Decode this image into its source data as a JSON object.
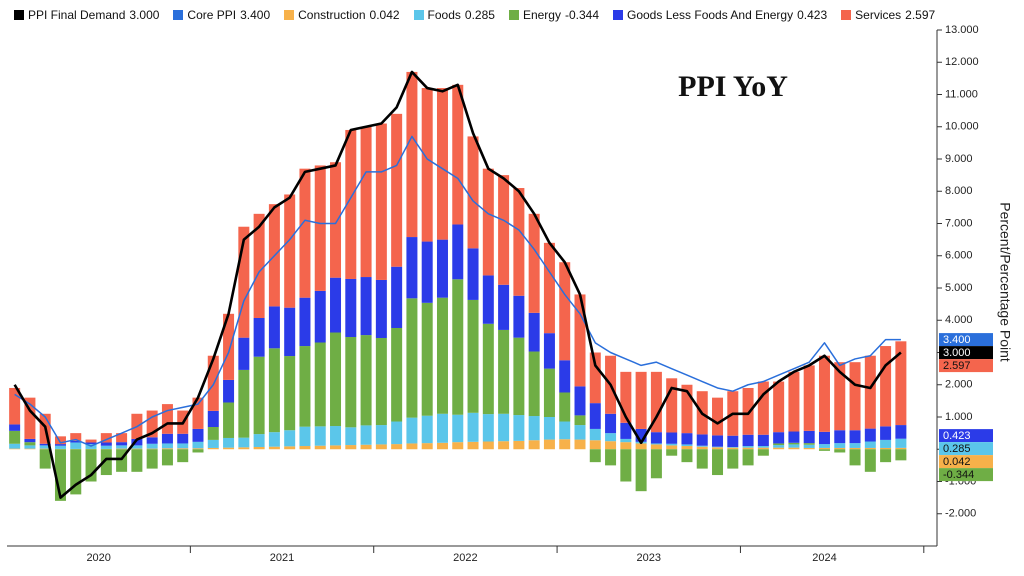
{
  "chart_data": {
    "type": "bar",
    "annotation": "PPI YoY",
    "y_label": "Percent/Percentage Point",
    "year_labels": [
      "2020",
      "2021",
      "2022",
      "2023",
      "2024"
    ],
    "categories": [
      null,
      null,
      null,
      null,
      null,
      null,
      null,
      null,
      null,
      null,
      null,
      null,
      null,
      null,
      null,
      null,
      null,
      null,
      null,
      null,
      null,
      null,
      null,
      null,
      null,
      null,
      null,
      null,
      null,
      null,
      null,
      null,
      null,
      null,
      null,
      null,
      null,
      null,
      null,
      null,
      null,
      null,
      null,
      null,
      null,
      null,
      null,
      null,
      null,
      null,
      null,
      null,
      null,
      null,
      null,
      null,
      null,
      null,
      null
    ],
    "ylim": [
      -3,
      13
    ],
    "yticks": [
      {
        "value": -2,
        "label": "-2.000"
      },
      {
        "value": -1,
        "label": "-1.000"
      },
      {
        "value": 0,
        "label": "0.000"
      },
      {
        "value": 1,
        "label": "1.000"
      },
      {
        "value": 2,
        "label": "2.000"
      },
      {
        "value": 3,
        "label": "3.000"
      },
      {
        "value": 4,
        "label": "4.000"
      },
      {
        "value": 5,
        "label": "5.000"
      },
      {
        "value": 6,
        "label": "6.000"
      },
      {
        "value": 7,
        "label": "7.000"
      },
      {
        "value": 8,
        "label": "8.000"
      },
      {
        "value": 9,
        "label": "9.000"
      },
      {
        "value": 10,
        "label": "10.000"
      },
      {
        "value": 11,
        "label": "11.000"
      },
      {
        "value": 12,
        "label": "12.000"
      },
      {
        "value": 13,
        "label": "13.000"
      }
    ],
    "series": [
      {
        "name": "PPI Final Demand",
        "type": "line",
        "color": "#000000",
        "values": [
          2.0,
          1.2,
          0.7,
          -1.5,
          -1.1,
          -0.8,
          -0.3,
          -0.3,
          0.3,
          0.5,
          0.8,
          0.8,
          1.6,
          2.8,
          4.2,
          6.5,
          6.9,
          7.5,
          7.8,
          8.6,
          8.7,
          8.8,
          9.9,
          10.0,
          10.1,
          10.6,
          11.7,
          11.2,
          11.1,
          11.3,
          9.8,
          8.7,
          8.4,
          8.0,
          7.3,
          6.4,
          5.8,
          4.8,
          2.6,
          2.0,
          1.0,
          0.2,
          1.0,
          1.9,
          1.8,
          1.1,
          0.8,
          1.1,
          1.1,
          1.7,
          2.1,
          2.4,
          2.6,
          2.9,
          2.4,
          2.0,
          1.9,
          2.6,
          3.0
        ],
        "value_labels": [
          null,
          null,
          null,
          null,
          null,
          null,
          null,
          null,
          null,
          null,
          null,
          null,
          null,
          null,
          null,
          null,
          null,
          null,
          null,
          null,
          null,
          null,
          null,
          null,
          null,
          null,
          null,
          null,
          null,
          null,
          null,
          null,
          null,
          null,
          null,
          null,
          null,
          null,
          null,
          null,
          null,
          null,
          null,
          null,
          null,
          null,
          null,
          null,
          null,
          null,
          null,
          null,
          null,
          null,
          null,
          null,
          null,
          null,
          "3.000"
        ]
      },
      {
        "name": "Core PPI",
        "type": "line",
        "color": "#2a6fdb",
        "values": [
          1.7,
          1.4,
          1.0,
          0.2,
          0.3,
          0.1,
          0.3,
          0.5,
          0.7,
          1.0,
          1.2,
          1.3,
          1.4,
          2.0,
          3.0,
          4.6,
          5.5,
          6.0,
          6.5,
          7.1,
          7.0,
          7.0,
          7.8,
          8.6,
          8.6,
          8.8,
          9.7,
          9.0,
          8.7,
          8.4,
          7.7,
          7.3,
          7.1,
          6.8,
          6.2,
          5.5,
          4.8,
          4.2,
          3.3,
          3.0,
          2.8,
          2.6,
          2.7,
          2.5,
          2.3,
          2.1,
          1.9,
          1.8,
          2.0,
          2.1,
          2.3,
          2.5,
          2.7,
          3.3,
          2.6,
          2.8,
          2.9,
          3.4,
          3.4
        ],
        "value_labels": [
          null,
          null,
          null,
          null,
          null,
          null,
          null,
          null,
          null,
          null,
          null,
          null,
          null,
          null,
          null,
          null,
          null,
          null,
          null,
          null,
          null,
          null,
          null,
          null,
          null,
          null,
          null,
          null,
          null,
          null,
          null,
          null,
          null,
          null,
          null,
          null,
          null,
          null,
          null,
          null,
          null,
          null,
          null,
          null,
          null,
          null,
          null,
          null,
          null,
          null,
          null,
          null,
          null,
          null,
          null,
          null,
          null,
          null,
          "3.400"
        ]
      },
      {
        "name": "Construction",
        "type": "bar",
        "color": "#f7b14a",
        "values": [
          0.02,
          0.02,
          0.02,
          0.01,
          0.01,
          0.01,
          0.01,
          0.02,
          0.02,
          0.02,
          0.03,
          0.03,
          0.03,
          0.04,
          0.05,
          0.06,
          0.07,
          0.08,
          0.09,
          0.1,
          0.11,
          0.12,
          0.13,
          0.14,
          0.15,
          0.16,
          0.18,
          0.19,
          0.2,
          0.22,
          0.23,
          0.24,
          0.25,
          0.26,
          0.28,
          0.3,
          0.31,
          0.3,
          0.28,
          0.25,
          0.22,
          0.18,
          0.15,
          0.12,
          0.1,
          0.08,
          0.06,
          0.05,
          0.05,
          0.05,
          0.05,
          0.05,
          0.04,
          0.04,
          0.04,
          0.04,
          0.04,
          0.04,
          0.042
        ],
        "value_labels": [
          null,
          null,
          null,
          null,
          null,
          null,
          null,
          null,
          null,
          null,
          null,
          null,
          null,
          null,
          null,
          null,
          null,
          null,
          null,
          null,
          null,
          null,
          null,
          null,
          null,
          null,
          null,
          null,
          null,
          null,
          null,
          null,
          null,
          null,
          null,
          null,
          null,
          null,
          null,
          null,
          null,
          null,
          null,
          null,
          null,
          null,
          null,
          null,
          null,
          null,
          null,
          null,
          null,
          null,
          null,
          null,
          null,
          null,
          "0.042"
        ]
      },
      {
        "name": "Foods",
        "type": "bar",
        "color": "#5bc6ea",
        "values": [
          0.15,
          0.1,
          0.1,
          0.1,
          0.2,
          0.15,
          0.1,
          0.1,
          0.1,
          0.15,
          0.15,
          0.15,
          0.2,
          0.25,
          0.3,
          0.3,
          0.4,
          0.45,
          0.5,
          0.6,
          0.6,
          0.6,
          0.55,
          0.6,
          0.6,
          0.7,
          0.8,
          0.85,
          0.9,
          0.85,
          0.9,
          0.85,
          0.85,
          0.8,
          0.75,
          0.7,
          0.55,
          0.45,
          0.35,
          0.25,
          0.1,
          0.05,
          0.03,
          0.05,
          0.05,
          0.03,
          0.02,
          0.02,
          0.05,
          0.05,
          0.08,
          0.1,
          0.1,
          0.12,
          0.15,
          0.15,
          0.2,
          0.25,
          0.285
        ],
        "value_labels": [
          null,
          null,
          null,
          null,
          null,
          null,
          null,
          null,
          null,
          null,
          null,
          null,
          null,
          null,
          null,
          null,
          null,
          null,
          null,
          null,
          null,
          null,
          null,
          null,
          null,
          null,
          null,
          null,
          null,
          null,
          null,
          null,
          null,
          null,
          null,
          null,
          null,
          null,
          null,
          null,
          null,
          null,
          null,
          null,
          null,
          null,
          null,
          null,
          null,
          null,
          null,
          null,
          null,
          null,
          null,
          null,
          null,
          null,
          "0.285"
        ]
      },
      {
        "name": "Energy",
        "type": "bar",
        "color": "#6fae45",
        "values": [
          0.4,
          0.1,
          -0.6,
          -1.6,
          -1.4,
          -1.0,
          -0.8,
          -0.7,
          -0.7,
          -0.6,
          -0.5,
          -0.4,
          -0.1,
          0.4,
          1.1,
          2.1,
          2.4,
          2.6,
          2.3,
          2.5,
          2.6,
          2.9,
          2.8,
          2.8,
          2.7,
          2.9,
          3.7,
          3.5,
          3.6,
          4.2,
          3.5,
          2.8,
          2.6,
          2.4,
          2.0,
          1.5,
          0.9,
          0.3,
          -0.4,
          -0.5,
          -1.0,
          -1.3,
          -0.9,
          -0.2,
          -0.4,
          -0.6,
          -0.8,
          -0.6,
          -0.5,
          -0.2,
          0.05,
          0.05,
          0.05,
          -0.05,
          -0.1,
          -0.5,
          -0.7,
          -0.4,
          -0.344
        ],
        "value_labels": [
          null,
          null,
          null,
          null,
          null,
          null,
          null,
          null,
          null,
          null,
          null,
          null,
          null,
          null,
          null,
          null,
          null,
          null,
          null,
          null,
          null,
          null,
          null,
          null,
          null,
          null,
          null,
          null,
          null,
          null,
          null,
          null,
          null,
          null,
          null,
          null,
          null,
          null,
          null,
          null,
          null,
          null,
          null,
          null,
          null,
          null,
          null,
          null,
          null,
          null,
          null,
          null,
          null,
          null,
          null,
          null,
          null,
          null,
          "-0.344"
        ]
      },
      {
        "name": "Goods Less Foods And Energy",
        "type": "bar",
        "color": "#2b3be8",
        "values": [
          0.2,
          0.1,
          0.05,
          0.05,
          0.05,
          0.05,
          0.1,
          0.1,
          0.2,
          0.2,
          0.3,
          0.3,
          0.4,
          0.5,
          0.7,
          1.0,
          1.2,
          1.3,
          1.5,
          1.5,
          1.6,
          1.7,
          1.8,
          1.8,
          1.8,
          1.9,
          1.9,
          1.9,
          1.8,
          1.7,
          1.6,
          1.5,
          1.4,
          1.3,
          1.2,
          1.1,
          1.0,
          0.9,
          0.8,
          0.6,
          0.5,
          0.4,
          0.35,
          0.35,
          0.35,
          0.35,
          0.35,
          0.35,
          0.35,
          0.35,
          0.35,
          0.35,
          0.38,
          0.38,
          0.4,
          0.4,
          0.4,
          0.42,
          0.423
        ],
        "value_labels": [
          null,
          null,
          null,
          null,
          null,
          null,
          null,
          null,
          null,
          null,
          null,
          null,
          null,
          null,
          null,
          null,
          null,
          null,
          null,
          null,
          null,
          null,
          null,
          null,
          null,
          null,
          null,
          null,
          null,
          null,
          null,
          null,
          null,
          null,
          null,
          null,
          null,
          null,
          null,
          null,
          null,
          null,
          null,
          null,
          null,
          null,
          null,
          null,
          null,
          null,
          null,
          null,
          null,
          null,
          null,
          null,
          null,
          null,
          "0.423"
        ]
      },
      {
        "name": "Services",
        "type": "bar",
        "color": "#f4654d",
        "values": [
          1.13,
          1.28,
          0.93,
          0.24,
          0.24,
          0.09,
          0.29,
          0.28,
          0.78,
          0.83,
          0.92,
          0.72,
          0.97,
          1.71,
          2.05,
          3.44,
          3.23,
          3.17,
          3.51,
          4.0,
          3.89,
          3.58,
          4.62,
          4.66,
          4.85,
          4.74,
          5.12,
          4.76,
          4.7,
          4.33,
          3.47,
          3.31,
          3.4,
          3.34,
          3.07,
          2.8,
          3.04,
          2.85,
          1.57,
          1.8,
          1.58,
          1.77,
          1.87,
          1.68,
          1.5,
          1.34,
          1.17,
          1.38,
          1.45,
          1.65,
          1.57,
          1.85,
          2.03,
          2.36,
          2.11,
          2.11,
          2.26,
          2.49,
          2.597
        ],
        "value_labels": [
          null,
          null,
          null,
          null,
          null,
          null,
          null,
          null,
          null,
          null,
          null,
          null,
          null,
          null,
          null,
          null,
          null,
          null,
          null,
          null,
          null,
          null,
          null,
          null,
          null,
          null,
          null,
          null,
          null,
          null,
          null,
          null,
          null,
          null,
          null,
          null,
          null,
          null,
          null,
          null,
          null,
          null,
          null,
          null,
          null,
          null,
          null,
          null,
          null,
          null,
          null,
          null,
          null,
          null,
          null,
          null,
          null,
          null,
          "2.597"
        ]
      }
    ]
  }
}
